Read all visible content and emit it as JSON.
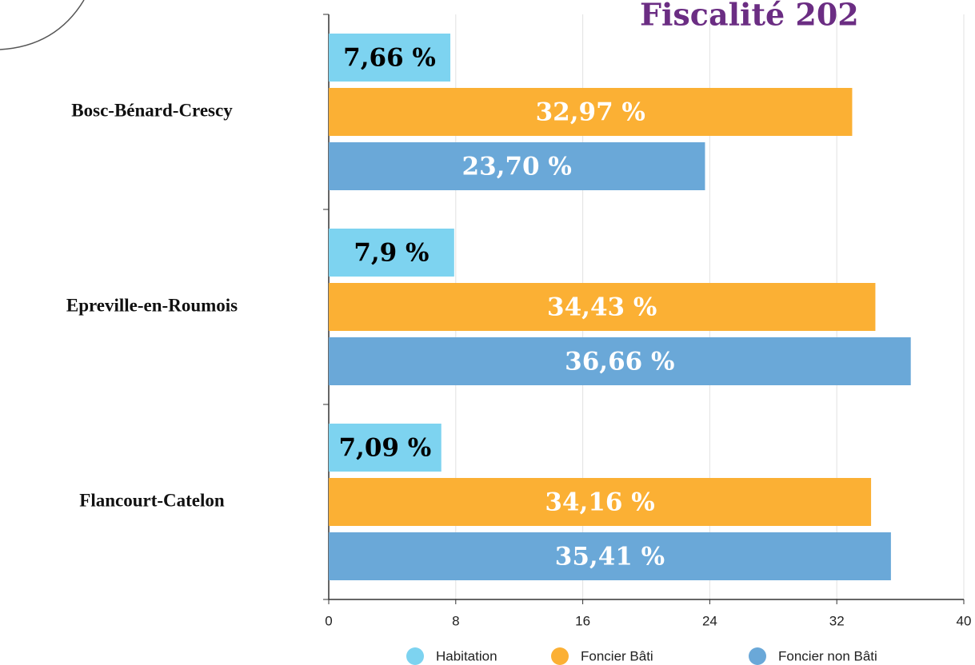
{
  "chart_data": {
    "type": "bar",
    "orientation": "horizontal",
    "title": "Fiscalité 202",
    "categories": [
      "Bosc-Bénard-Crescy",
      "Epreville-en-Roumois",
      "Flancourt-Catelon"
    ],
    "series": [
      {
        "name": "Habitation",
        "color": "#7dd3f0",
        "values": [
          7.66,
          7.9,
          7.09
        ],
        "value_labels": [
          "7,66 %",
          "7,9 %",
          "7,09 %"
        ]
      },
      {
        "name": "Foncier Bâti",
        "color": "#fbb034",
        "values": [
          32.97,
          34.43,
          34.16
        ],
        "value_labels": [
          "32,97 %",
          "34,43 %",
          "34,16 %"
        ]
      },
      {
        "name": "Foncier non Bâti",
        "color": "#6aa8d8",
        "values": [
          23.7,
          36.66,
          35.41
        ],
        "value_labels": [
          "23,70 %",
          "36,66 %",
          "35,41 %"
        ]
      }
    ],
    "xlim": [
      0,
      40
    ],
    "xticks": [
      0,
      8,
      16,
      24,
      32,
      40
    ],
    "grid": true,
    "legend": "bottom"
  }
}
